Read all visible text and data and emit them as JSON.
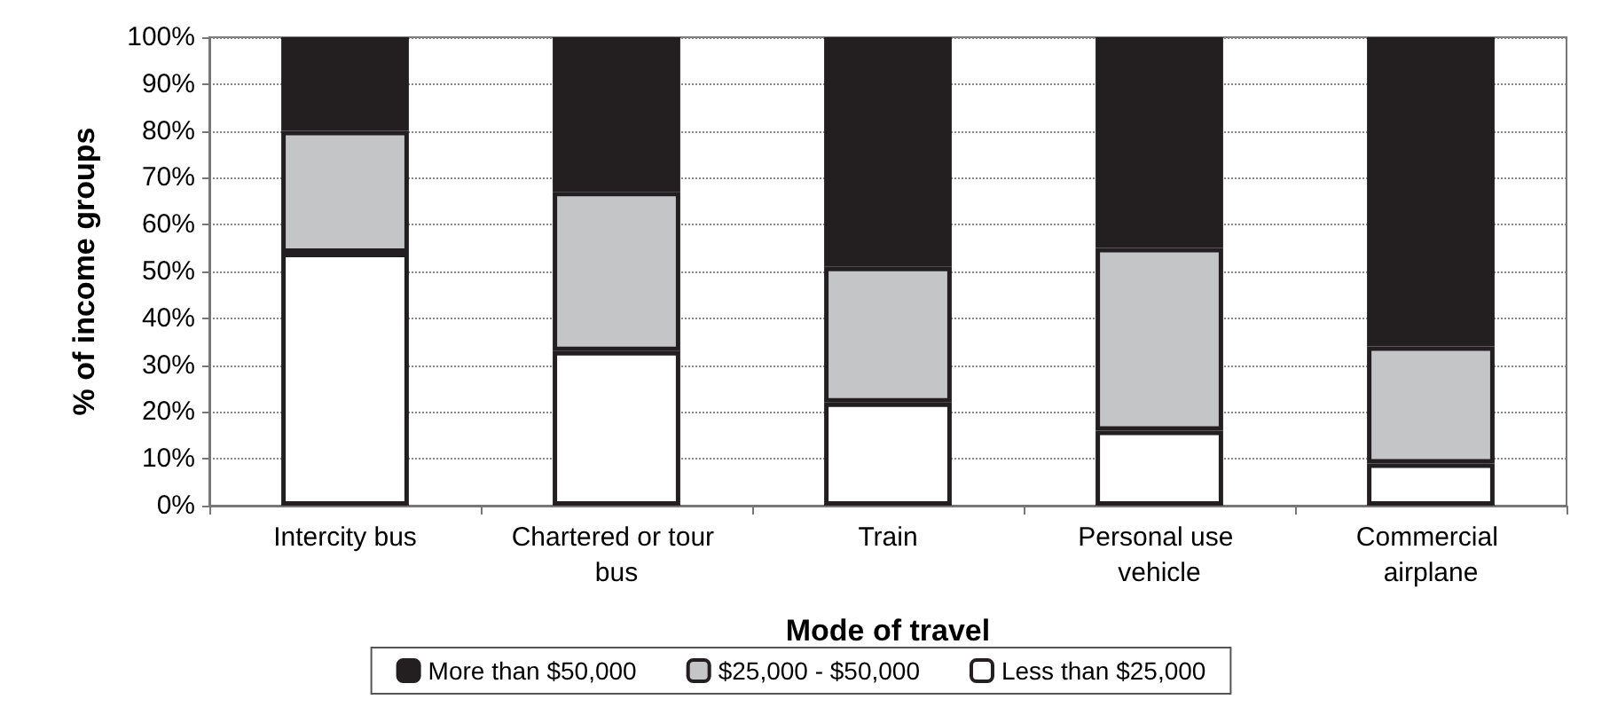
{
  "chart_data": {
    "type": "bar",
    "stacked": true,
    "xlabel": "Mode of travel",
    "ylabel": "% of income groups",
    "categories": [
      "Intercity bus",
      "Chartered or tour bus",
      "Train",
      "Personal use vehicle",
      "Commercial airplane"
    ],
    "series": [
      {
        "name": "Less than $25,000",
        "color": "#ffffff",
        "values": [
          54,
          33,
          22,
          16,
          9
        ]
      },
      {
        "name": "$25,000 - $50,000",
        "color": "#c4c5c7",
        "values": [
          26,
          34,
          29,
          39,
          25
        ]
      },
      {
        "name": "More than $50,000",
        "color": "#231f20",
        "values": [
          20,
          33,
          49,
          45,
          66
        ]
      }
    ],
    "ylim": [
      0,
      100
    ],
    "yticks": [
      {
        "value": 0,
        "label": "0%"
      },
      {
        "value": 10,
        "label": "10%"
      },
      {
        "value": 20,
        "label": "20%"
      },
      {
        "value": 30,
        "label": "30%"
      },
      {
        "value": 40,
        "label": "40%"
      },
      {
        "value": 50,
        "label": "50%"
      },
      {
        "value": 60,
        "label": "60%"
      },
      {
        "value": 70,
        "label": "70%"
      },
      {
        "value": 80,
        "label": "80%"
      },
      {
        "value": 90,
        "label": "90%"
      },
      {
        "value": 100,
        "label": "100%"
      }
    ],
    "grid": "y",
    "legend": "bottom"
  }
}
